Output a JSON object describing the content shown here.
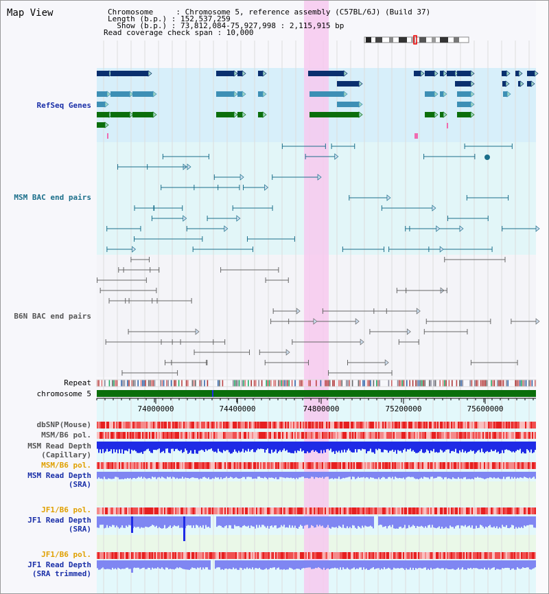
{
  "title": "Map View",
  "info": {
    "chromosome": "Chromosome     : Chromosome 5, reference assembly (C57BL/6J) (Build 37)",
    "length": "Length (b.p.) : 152,537,259",
    "show": "  Show (b.p.) : 73,812,084-75,927,998 : 2,115,915 bp",
    "coverage": "Read coverage check span : 10,000"
  },
  "tracks": {
    "refseq": "RefSeq Genes",
    "msm_bac": "MSM BAC end pairs",
    "b6n_bac": "B6N BAC end pairs",
    "repeat": "Repeat",
    "chromosome": "chromosome 5",
    "dbsnp": "dbSNP(Mouse)",
    "msm_pol_1": "MSM/B6 pol.",
    "msm_depth_cap_1": "MSM Read Depth",
    "msm_depth_cap_2": "(Capillary)",
    "msm_pol_2": "MSM/B6 pol.",
    "msm_depth_sra_1": "MSM Read Depth",
    "msm_depth_sra_2": "(SRA)",
    "jf1_pol_1": "JF1/B6 pol.",
    "jf1_depth_sra_1": "JF1 Read Depth",
    "jf1_depth_sra_2": "(SRA)",
    "jf1_pol_2": "JF1/B6 pol.",
    "jf1_depth_trim_1": "JF1 Read Depth",
    "jf1_depth_trim_2": "(SRA trimmed)"
  },
  "axis": {
    "ticks": [
      "74000000",
      "74400000",
      "74800000",
      "75200000",
      "75600000"
    ]
  },
  "colors": {
    "refseq_dark": "#0a2f6e",
    "refseq_mid": "#3d8fb5",
    "refseq_green": "#0b6e0b",
    "msm_line": "#1a6e8a",
    "b6n_line": "#666666",
    "highlight": "#f7c9ef",
    "depth_blue": "#1f2be6",
    "depth_light": "#7f86f2",
    "pol_red": "#ef3b3b"
  }
}
